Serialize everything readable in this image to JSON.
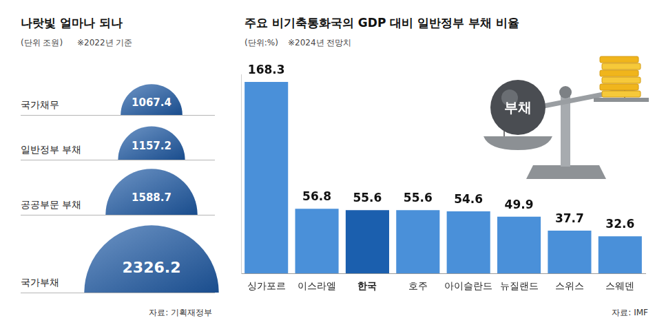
{
  "chart_data": [
    {
      "type": "semicircle",
      "title": "나랏빛 얼마나 되나",
      "subtitle": "(단위 조원)",
      "note": "※2022년 기준",
      "categories": [
        "국가채무",
        "일반정부 부채",
        "공공부문 부채",
        "국가부채"
      ],
      "values": [
        1067.4,
        1157.2,
        1588.7,
        2326.2
      ],
      "color": "#1f5aa6",
      "data_labels": true,
      "source": "자료: 기획재정부"
    },
    {
      "type": "bar",
      "title": "주요 비기축통화국의 GDP 대비 일반정부 부채 비율",
      "subtitle": "(단위:%)",
      "note": "※2024년 전망치",
      "annotation": "부채",
      "categories": [
        "싱가포르",
        "이스라엘",
        "한국",
        "호주",
        "아이슬란드",
        "뉴질랜드",
        "스위스",
        "스웨덴"
      ],
      "values": [
        168.3,
        56.8,
        55.6,
        55.6,
        54.6,
        49.9,
        37.7,
        32.6
      ],
      "colors": [
        "#4a90d9",
        "#4a90d9",
        "#1b5fae",
        "#4a90d9",
        "#4a90d9",
        "#4a90d9",
        "#4a90d9",
        "#4a90d9"
      ],
      "ylim": [
        0,
        175
      ],
      "grid": false,
      "data_labels": true,
      "tick_labels": "x",
      "source": "자료: IMF"
    }
  ]
}
